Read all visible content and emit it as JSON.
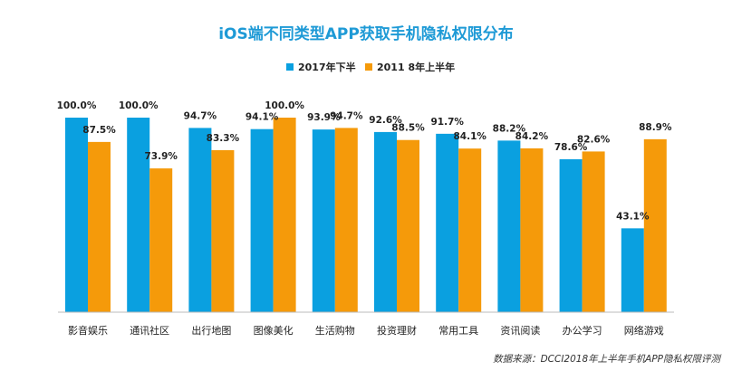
{
  "chart_data": {
    "type": "bar",
    "title": "iOS端不同类型APP获取手机隐私权限分布",
    "categories": [
      "影音娱乐",
      "通讯社区",
      "出行地图",
      "图像美化",
      "生活购物",
      "投资理财",
      "常用工具",
      "资讯阅读",
      "办公学习",
      "网络游戏"
    ],
    "series": [
      {
        "name": "2017年下半",
        "color": "#0aa0e0",
        "values": [
          100.0,
          100.0,
          94.7,
          94.1,
          93.9,
          92.6,
          91.7,
          88.2,
          78.6,
          43.1
        ],
        "labels": [
          "100.0%",
          "100.0%",
          "94.7%",
          "94.1%",
          "93.9%",
          "92.6%",
          "91.7%",
          "88.2%",
          "78.6%",
          "43.1%"
        ]
      },
      {
        "name": "2011 8年上半年",
        "color": "#f59a0a",
        "values": [
          87.5,
          73.9,
          83.3,
          100.0,
          94.7,
          88.5,
          84.1,
          84.2,
          82.6,
          88.9
        ],
        "labels": [
          "87.5%",
          "73.9%",
          "83.3%",
          "100.0%",
          "94.7%",
          "88.5%",
          "84.1%",
          "84.2%",
          "82.6%",
          "88.9%"
        ]
      }
    ],
    "ylim": [
      0,
      100
    ],
    "xlabel": "",
    "ylabel": "",
    "grid": false,
    "legend_position": "top-center",
    "source": "数据来源：DCCI2018年上半年手机APP隐私权限评测"
  },
  "colors": {
    "title": "#1e9ad6",
    "axis": "#bbbbbb"
  }
}
